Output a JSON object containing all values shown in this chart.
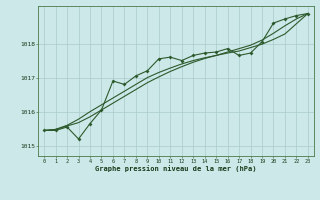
{
  "xlabel": "Graphe pression niveau de la mer (hPa)",
  "background_color": "#cce8e8",
  "grid_color": "#aacccc",
  "line_color": "#2d5a2d",
  "hours": [
    0,
    1,
    2,
    3,
    4,
    5,
    6,
    7,
    8,
    9,
    10,
    11,
    12,
    13,
    14,
    15,
    16,
    17,
    18,
    19,
    20,
    21,
    22,
    23
  ],
  "series1": [
    1015.45,
    1015.45,
    1015.55,
    1015.2,
    1015.65,
    1016.05,
    1016.9,
    1016.8,
    1017.05,
    1017.2,
    1017.55,
    1017.6,
    1017.5,
    1017.65,
    1017.72,
    1017.75,
    1017.85,
    1017.65,
    1017.72,
    1018.05,
    1018.6,
    1018.72,
    1018.82,
    1018.88
  ],
  "series2": [
    1015.45,
    1015.48,
    1015.58,
    1015.68,
    1015.85,
    1016.05,
    1016.25,
    1016.45,
    1016.65,
    1016.85,
    1017.02,
    1017.18,
    1017.32,
    1017.45,
    1017.56,
    1017.65,
    1017.75,
    1017.85,
    1017.95,
    1018.1,
    1018.3,
    1018.52,
    1018.72,
    1018.88
  ],
  "series3": [
    1015.45,
    1015.48,
    1015.6,
    1015.78,
    1016.0,
    1016.2,
    1016.4,
    1016.6,
    1016.8,
    1017.0,
    1017.15,
    1017.28,
    1017.4,
    1017.5,
    1017.58,
    1017.65,
    1017.72,
    1017.78,
    1017.88,
    1017.98,
    1018.12,
    1018.28,
    1018.58,
    1018.88
  ],
  "ylim": [
    1014.7,
    1019.1
  ],
  "yticks": [
    1015,
    1016,
    1017,
    1018
  ],
  "xticks": [
    0,
    1,
    2,
    3,
    4,
    5,
    6,
    7,
    8,
    9,
    10,
    11,
    12,
    13,
    14,
    15,
    16,
    17,
    18,
    19,
    20,
    21,
    22,
    23
  ],
  "xlim": [
    -0.5,
    23.5
  ]
}
